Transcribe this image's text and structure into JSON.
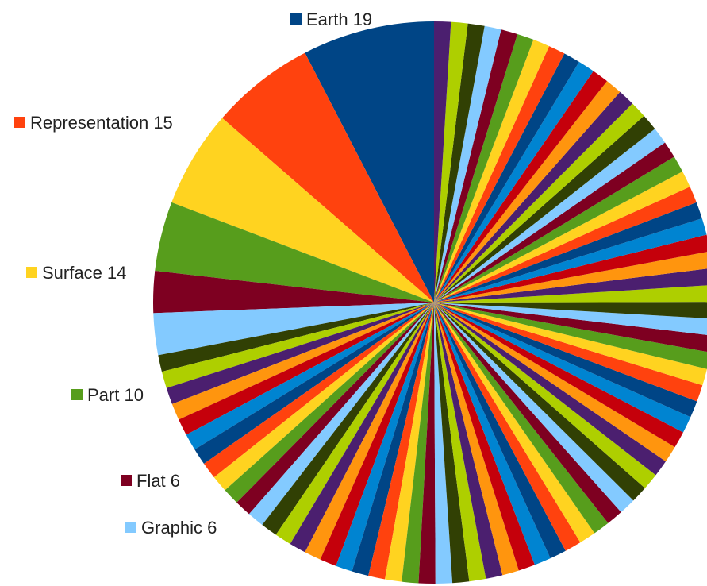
{
  "chart_data": {
    "type": "pie",
    "start_angle_deg": -90,
    "direction": "counterclockwise",
    "slices": [
      {
        "label": "Earth",
        "value": 19,
        "color": "#004586",
        "show_label": true
      },
      {
        "label": "Representation",
        "value": 15,
        "color": "#ff420e",
        "show_label": true
      },
      {
        "label": "Surface",
        "value": 14,
        "color": "#ffd320",
        "show_label": true
      },
      {
        "label": "Part",
        "value": 10,
        "color": "#579d1c",
        "show_label": true
      },
      {
        "label": "Flat",
        "value": 6,
        "color": "#7e0021",
        "show_label": true
      },
      {
        "label": "Graphic",
        "value": 6,
        "color": "#83caff",
        "show_label": true
      }
    ],
    "minor_slices": {
      "count": 75,
      "value_each": 2.4,
      "palette": [
        "#314004",
        "#aecf00",
        "#4b1f6f",
        "#ff950e",
        "#c5000b",
        "#0084d1",
        "#004586",
        "#ff420e",
        "#ffd320",
        "#579d1c",
        "#7e0021",
        "#83caff"
      ]
    }
  }
}
